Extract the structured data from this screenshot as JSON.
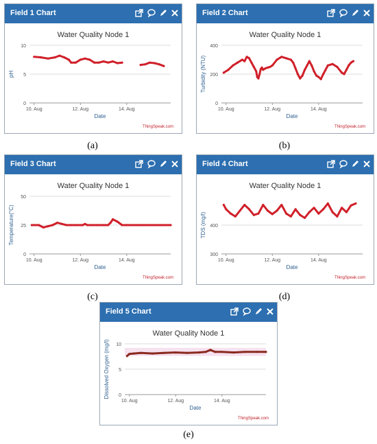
{
  "chart_data": [
    {
      "type": "line",
      "panel_title": "Field 1 Chart",
      "title": "Water Quality Node 1",
      "xlabel": "Date",
      "ylabel": "pH",
      "xticks": [
        "10. Aug",
        "12. Aug",
        "14. Aug"
      ],
      "yticks": [
        0,
        5,
        10
      ],
      "ylim": [
        0,
        10
      ],
      "xlim": [
        9.8,
        15.9
      ],
      "credit": "ThingSpeak.com",
      "caption": "(a)",
      "color": "#d0202a",
      "grid": true,
      "x": [
        10.0,
        10.3,
        10.6,
        10.9,
        11.1,
        11.3,
        11.5,
        11.6,
        11.8,
        12.0,
        12.2,
        12.4,
        12.6,
        12.8,
        13.0,
        13.2,
        13.4,
        13.6,
        13.8,
        14.0,
        14.2,
        14.4,
        14.6,
        14.8,
        15.0,
        15.2,
        15.4,
        15.6
      ],
      "values": [
        8.0,
        7.9,
        7.7,
        7.9,
        8.2,
        7.9,
        7.5,
        7.0,
        7.0,
        7.5,
        7.7,
        7.5,
        7.0,
        7.0,
        7.2,
        7.0,
        7.2,
        6.9,
        7.0,
        null,
        null,
        null,
        6.6,
        6.7,
        7.0,
        6.9,
        6.7,
        6.4
      ]
    },
    {
      "type": "line",
      "panel_title": "Field 2 Chart",
      "title": "Water Quality Node 1",
      "xlabel": "Date",
      "ylabel": "Turbidity (NTU)",
      "xticks": [
        "10. Aug",
        "12. Aug",
        "14. Aug"
      ],
      "yticks": [
        0,
        200,
        400
      ],
      "ylim": [
        0,
        400
      ],
      "xlim": [
        9.8,
        15.9
      ],
      "credit": "ThingSpeak.com",
      "caption": "(b)",
      "color": "#d0202a",
      "grid": true,
      "x": [
        9.9,
        10.1,
        10.3,
        10.5,
        10.7,
        10.8,
        10.9,
        11.0,
        11.1,
        11.2,
        11.3,
        11.35,
        11.4,
        11.45,
        11.5,
        11.55,
        11.6,
        11.7,
        11.8,
        11.9,
        12.0,
        12.2,
        12.4,
        12.6,
        12.8,
        12.9,
        13.0,
        13.1,
        13.2,
        13.3,
        13.4,
        13.5,
        13.6,
        13.7,
        13.8,
        13.9,
        14.0,
        14.1,
        14.2,
        14.3,
        14.4,
        14.6,
        14.8,
        15.0,
        15.1,
        15.2,
        15.3,
        15.4,
        15.5
      ],
      "values": [
        210,
        230,
        260,
        280,
        300,
        290,
        320,
        310,
        280,
        250,
        220,
        180,
        170,
        200,
        235,
        245,
        230,
        240,
        245,
        250,
        260,
        300,
        320,
        310,
        300,
        280,
        240,
        200,
        170,
        190,
        230,
        260,
        290,
        260,
        220,
        190,
        180,
        165,
        200,
        230,
        260,
        270,
        250,
        210,
        200,
        230,
        260,
        280,
        290
      ]
    },
    {
      "type": "line",
      "panel_title": "Field 3 Chart",
      "title": "Water Quality Node 1",
      "xlabel": "Date",
      "ylabel": "Temperature(°C)",
      "xticks": [
        "10. Aug",
        "12. Aug",
        "14. Aug"
      ],
      "yticks": [
        0,
        25,
        50
      ],
      "ylim": [
        0,
        50
      ],
      "xlim": [
        9.8,
        15.9
      ],
      "credit": "ThingSpeak.com",
      "caption": "(c)",
      "color": "#d0202a",
      "grid": true,
      "x": [
        9.9,
        10.2,
        10.4,
        10.6,
        10.8,
        11.0,
        11.2,
        11.4,
        11.6,
        11.8,
        12.0,
        12.1,
        12.2,
        12.3,
        12.5,
        12.7,
        12.9,
        13.0,
        13.1,
        13.2,
        13.3,
        13.4,
        13.6,
        13.8,
        14.0,
        14.5,
        15.0,
        15.5,
        15.9
      ],
      "values": [
        25,
        25,
        23,
        24,
        25,
        27,
        26,
        25,
        25,
        25,
        25,
        25,
        26,
        25,
        25,
        25,
        25,
        25,
        25,
        25,
        27,
        30,
        28,
        25,
        25,
        25,
        25,
        25,
        25
      ]
    },
    {
      "type": "line",
      "panel_title": "Field 4 Chart",
      "title": "Water Quality Node 1",
      "xlabel": "Date",
      "ylabel": "TDS (mg/l)",
      "xticks": [
        "10. Aug",
        "12. Aug",
        "14. Aug"
      ],
      "yticks": [
        300,
        400
      ],
      "ylim": [
        300,
        500
      ],
      "xlim": [
        9.8,
        15.9
      ],
      "credit": "ThingSpeak.com",
      "caption": "(d)",
      "color": "#d0202a",
      "grid": true,
      "x": [
        9.9,
        10.0,
        10.2,
        10.4,
        10.6,
        10.8,
        11.0,
        11.2,
        11.4,
        11.6,
        11.8,
        12.0,
        12.2,
        12.4,
        12.6,
        12.8,
        13.0,
        13.2,
        13.4,
        13.6,
        13.8,
        14.0,
        14.2,
        14.4,
        14.6,
        14.8,
        15.0,
        15.2,
        15.4,
        15.6
      ],
      "values": [
        470,
        455,
        440,
        430,
        450,
        470,
        455,
        435,
        440,
        470,
        450,
        438,
        450,
        470,
        440,
        430,
        455,
        435,
        425,
        445,
        460,
        440,
        455,
        475,
        445,
        430,
        460,
        445,
        468,
        475
      ]
    },
    {
      "type": "line",
      "panel_title": "Field 5 Chart",
      "title": "Water Quality Node 1",
      "xlabel": "Date",
      "ylabel": "Dissolved Oxygen (mg/l)",
      "xticks": [
        "10. Aug",
        "12. Aug",
        "14. Aug"
      ],
      "yticks": [
        0,
        5,
        10
      ],
      "ylim": [
        0,
        10
      ],
      "xlim": [
        9.8,
        15.9
      ],
      "credit": "ThingSpeak.com",
      "caption": "(e)",
      "color": "#8a2a1e",
      "grid": true,
      "x": [
        9.9,
        10.0,
        10.2,
        10.5,
        11.0,
        11.5,
        12.0,
        12.5,
        13.0,
        13.3,
        13.5,
        13.7,
        14.0,
        14.5,
        15.0,
        15.5,
        15.9
      ],
      "values": [
        7.6,
        8.0,
        8.1,
        8.2,
        8.1,
        8.2,
        8.3,
        8.2,
        8.3,
        8.4,
        8.8,
        8.4,
        8.4,
        8.3,
        8.4,
        8.4,
        8.4
      ]
    }
  ]
}
